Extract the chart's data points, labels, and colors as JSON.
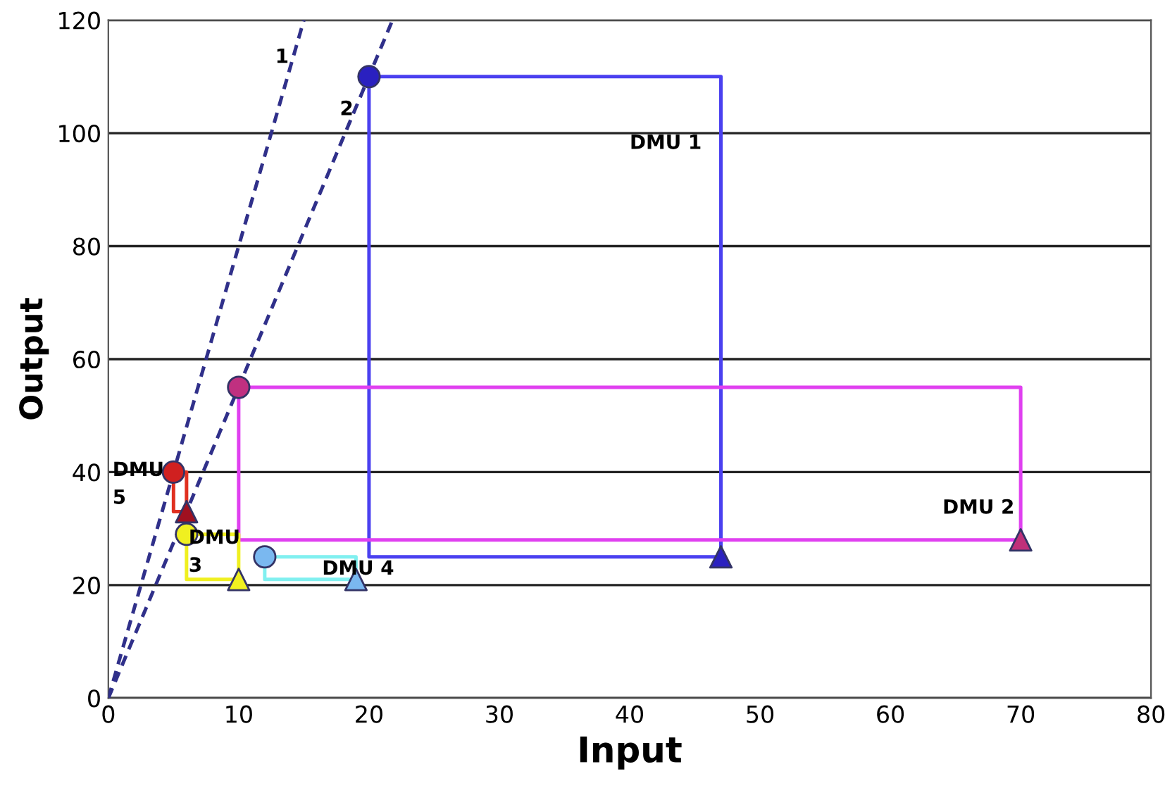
{
  "chart_data": {
    "type": "line",
    "xlabel": "Input",
    "ylabel": "Output",
    "xlim": [
      0,
      80
    ],
    "ylim": [
      0,
      120
    ],
    "xticks": [
      0,
      10,
      20,
      30,
      40,
      50,
      60,
      70,
      80
    ],
    "yticks": [
      0,
      20,
      40,
      60,
      80,
      100,
      120
    ],
    "grid": "y",
    "line_style": "solid",
    "series": [
      {
        "line_style": "dashed",
        "color": "#30308a",
        "x": [
          0,
          15
        ],
        "values": [
          0,
          120
        ]
      },
      {
        "line_style": "dashed",
        "color": "#30308a",
        "x": [
          0,
          21.8
        ],
        "values": [
          0,
          120
        ]
      },
      {
        "color": "#4a40f0",
        "x": [
          20,
          47,
          47
        ],
        "values": [
          110,
          110,
          25
        ]
      },
      {
        "color": "#4a40f0",
        "x": [
          20,
          20,
          47
        ],
        "values": [
          110,
          25,
          25
        ]
      },
      {
        "color": "#e040f0",
        "x": [
          10,
          70,
          70
        ],
        "values": [
          55,
          55,
          28
        ]
      },
      {
        "color": "#e040f0",
        "x": [
          10,
          10,
          70
        ],
        "values": [
          55,
          28,
          28
        ]
      },
      {
        "color": "#f0f020",
        "x": [
          6,
          10,
          10
        ],
        "values": [
          29,
          29,
          21
        ]
      },
      {
        "color": "#f0f020",
        "x": [
          6,
          6,
          10
        ],
        "values": [
          29,
          21,
          21
        ]
      },
      {
        "color": "#80f0f0",
        "x": [
          12,
          19,
          19
        ],
        "values": [
          25,
          25,
          21
        ]
      },
      {
        "color": "#80f0f0",
        "x": [
          12,
          12,
          19
        ],
        "values": [
          25,
          21,
          21
        ]
      },
      {
        "color": "#e03020",
        "x": [
          5,
          6,
          6
        ],
        "values": [
          40,
          40,
          33
        ]
      },
      {
        "color": "#e03020",
        "x": [
          5,
          5,
          6
        ],
        "values": [
          40,
          33,
          33
        ]
      },
      {
        "type": "scatter",
        "marker": "circle",
        "x": [
          20,
          10,
          6,
          12,
          5
        ],
        "values": [
          110,
          55,
          29,
          25,
          40
        ],
        "colors": [
          "#2a20c0",
          "#c03080",
          "#f0f020",
          "#7ab8f0",
          "#d02020"
        ]
      },
      {
        "type": "scatter",
        "marker": "triangle",
        "x": [
          47,
          70,
          10,
          19,
          6
        ],
        "values": [
          25,
          28,
          21,
          21,
          33
        ],
        "colors": [
          "#2a20c0",
          "#c0307a",
          "#f0f020",
          "#7ab8f0",
          "#a01020"
        ]
      }
    ],
    "annotations": [
      "1",
      "2",
      "DMU 1",
      "DMU 2",
      "DMU\n5",
      "DMU\n3",
      "DMU 4"
    ]
  }
}
